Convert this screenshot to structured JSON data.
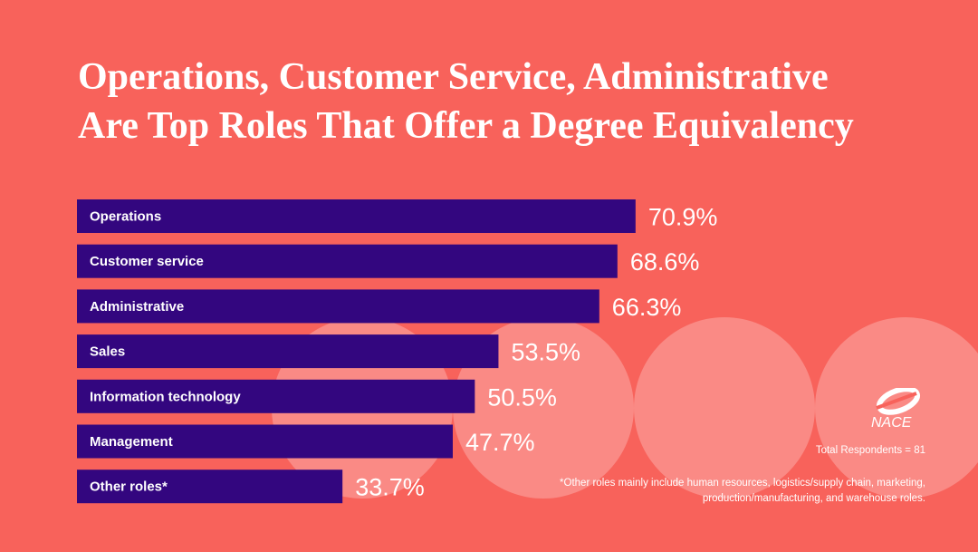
{
  "title_line1": "Operations, Customer Service, Administrative",
  "title_line2": "Are Top Roles That Offer a Degree Equivalency",
  "logo_text": "NACE",
  "respondents": "Total Respondents = 81",
  "footnote": "*Other roles mainly include human resources, logistics/supply chain, marketing, production/manufacturing, and warehouse roles.",
  "colors": {
    "background": "#f8625b",
    "bar": "#33067f",
    "circle": "#fa8a85",
    "text": "#ffffff"
  },
  "chart_data": {
    "type": "bar",
    "orientation": "horizontal",
    "categories": [
      "Operations",
      "Customer service",
      "Administrative",
      "Sales",
      "Information technology",
      "Management",
      "Other roles*"
    ],
    "values": [
      70.9,
      68.6,
      66.3,
      53.5,
      50.5,
      47.7,
      33.7
    ],
    "value_labels": [
      "70.9%",
      "68.6%",
      "66.3%",
      "53.5%",
      "50.5%",
      "47.7%",
      "33.7%"
    ],
    "unit": "%",
    "grid": false,
    "legend": "none"
  }
}
